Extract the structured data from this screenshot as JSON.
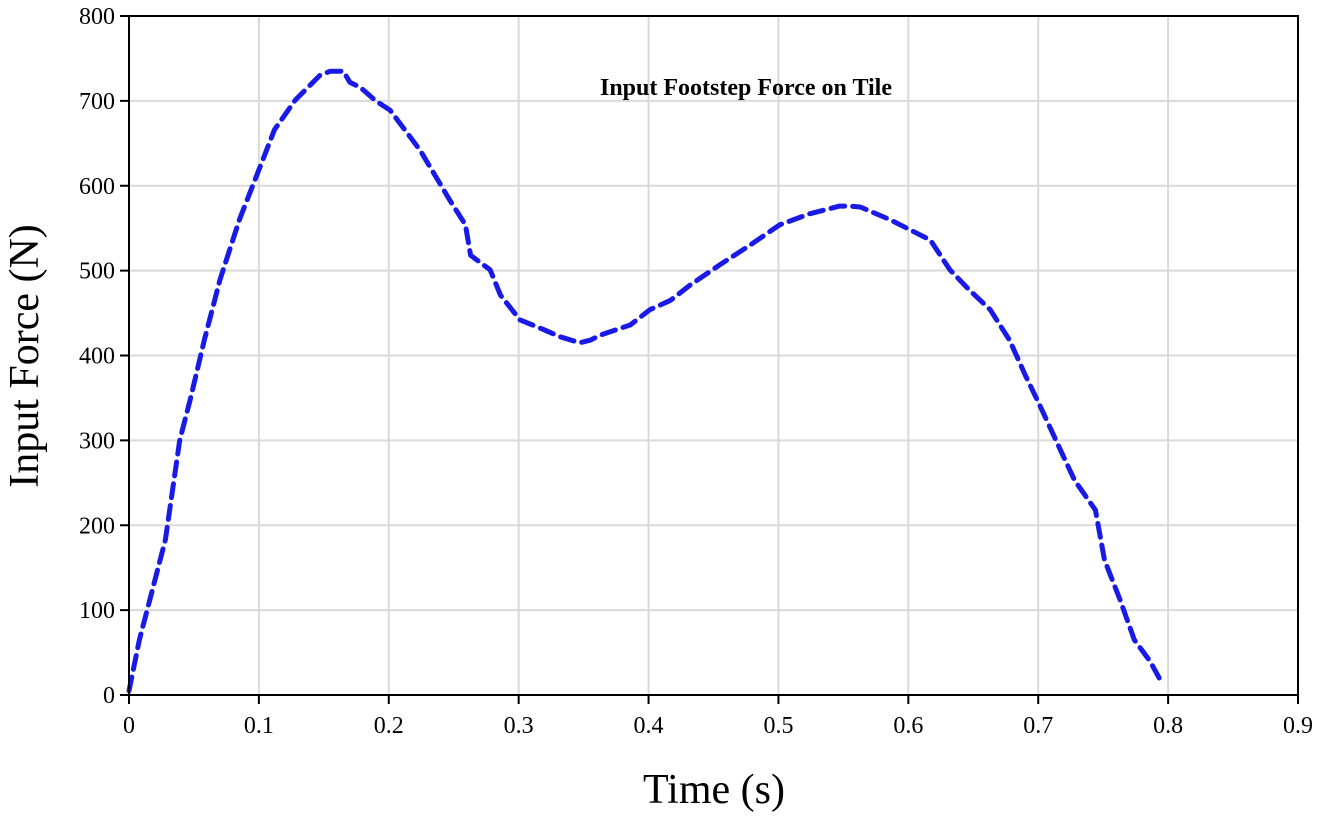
{
  "chart_data": {
    "type": "line",
    "title": "Input Footstep Force on Tile",
    "xlabel": "Time (s)",
    "ylabel": "Input Force (N)",
    "xlim": [
      0,
      0.9
    ],
    "ylim": [
      0,
      800
    ],
    "xticks": [
      "0",
      "0.1",
      "0.2",
      "0.3",
      "0.4",
      "0.5",
      "0.6",
      "0.7",
      "0.8",
      "0.9"
    ],
    "yticks": [
      "0",
      "100",
      "200",
      "300",
      "400",
      "500",
      "600",
      "700",
      "800"
    ],
    "grid": true,
    "legend": null,
    "series": [
      {
        "name": "Input Footstep Force",
        "color": "#1a1ae6",
        "line_style": "dashed",
        "x": [
          0,
          0.008,
          0.016,
          0.028,
          0.039,
          0.047,
          0.058,
          0.07,
          0.085,
          0.097,
          0.112,
          0.128,
          0.147,
          0.155,
          0.165,
          0.17,
          0.178,
          0.19,
          0.201,
          0.224,
          0.247,
          0.259,
          0.263,
          0.278,
          0.286,
          0.301,
          0.32,
          0.332,
          0.347,
          0.355,
          0.363,
          0.386,
          0.401,
          0.417,
          0.432,
          0.455,
          0.478,
          0.501,
          0.524,
          0.547,
          0.555,
          0.563,
          0.586,
          0.617,
          0.632,
          0.647,
          0.663,
          0.678,
          0.69,
          0.701,
          0.717,
          0.728,
          0.744,
          0.751,
          0.763,
          0.774,
          0.786,
          0.796
        ],
        "y": [
          5,
          65,
          112,
          183,
          300,
          347,
          418,
          489,
          560,
          607,
          666,
          701,
          730,
          735,
          735,
          722,
          716,
          700,
          689,
          642,
          583,
          554,
          518,
          501,
          471,
          442,
          430,
          422,
          415,
          418,
          424,
          436,
          454,
          465,
          483,
          507,
          530,
          554,
          567,
          576,
          576,
          575,
          560,
          536,
          501,
          477,
          454,
          418,
          377,
          342,
          289,
          253,
          218,
          159,
          112,
          65,
          40,
          12
        ]
      }
    ]
  }
}
